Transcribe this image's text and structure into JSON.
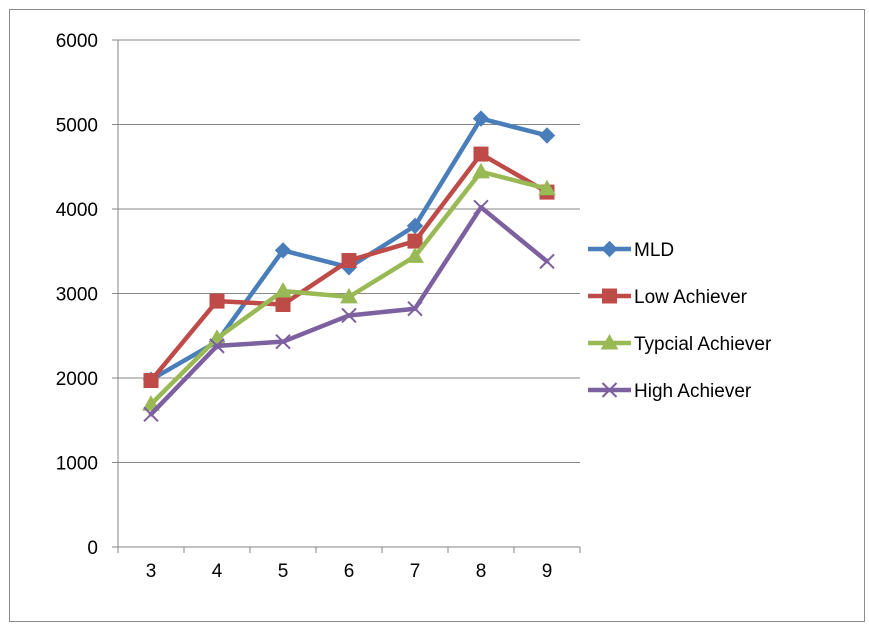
{
  "chart_data": {
    "type": "line",
    "title": "",
    "xlabel": "",
    "ylabel": "",
    "categories": [
      "3",
      "4",
      "5",
      "6",
      "7",
      "8",
      "9"
    ],
    "ylim": [
      0,
      6000
    ],
    "yticks": [
      0,
      1000,
      2000,
      3000,
      4000,
      5000,
      6000
    ],
    "grid": "horizontal",
    "legend_position": "right",
    "series": [
      {
        "name": "MLD",
        "color": "#4a7ebb",
        "marker": "diamond",
        "values": [
          1980,
          2430,
          3510,
          3310,
          3800,
          5070,
          4870
        ]
      },
      {
        "name": "Low Achiever",
        "color": "#be4b48",
        "marker": "square",
        "values": [
          1970,
          2910,
          2870,
          3390,
          3620,
          4650,
          4200
        ]
      },
      {
        "name": "Typcial Achiever",
        "color": "#98b954",
        "marker": "triangle",
        "values": [
          1690,
          2470,
          3030,
          2960,
          3440,
          4440,
          4240
        ]
      },
      {
        "name": "High Achiever",
        "color": "#7d60a0",
        "marker": "x",
        "values": [
          1570,
          2380,
          2430,
          2740,
          2820,
          4020,
          3380
        ]
      }
    ]
  }
}
